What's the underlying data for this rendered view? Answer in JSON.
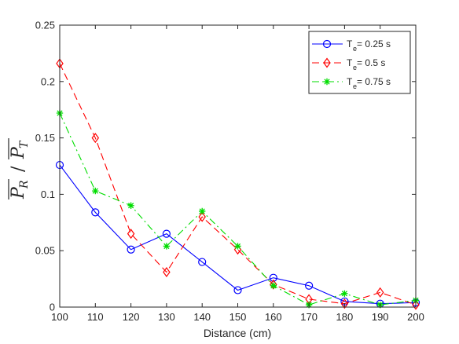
{
  "chart_data": {
    "type": "line",
    "title": "",
    "xlabel": "Distance (cm)",
    "ylabel_parts": {
      "num": "P",
      "num_sub": "R",
      "sep": "/",
      "den": "P",
      "den_sub": "T"
    },
    "xlim": [
      100,
      200
    ],
    "ylim": [
      0,
      0.25
    ],
    "x_ticks": [
      100,
      110,
      120,
      130,
      140,
      150,
      160,
      170,
      180,
      190,
      200
    ],
    "y_ticks": [
      0,
      0.05,
      0.1,
      0.15,
      0.2,
      0.25
    ],
    "y_tick_labels": [
      "0",
      "0.05",
      "0.1",
      "0.15",
      "0.2",
      "0.25"
    ],
    "grid": false,
    "legend_position": "top-right",
    "x": [
      100,
      110,
      120,
      130,
      140,
      150,
      160,
      170,
      180,
      190,
      200
    ],
    "series": [
      {
        "label_main": "T",
        "label_sub": "e",
        "label_rest": " = 0.25 s",
        "color": "#0000ff",
        "line": "solid",
        "marker": "circle",
        "values": [
          0.126,
          0.084,
          0.051,
          0.065,
          0.04,
          0.015,
          0.026,
          0.019,
          0.005,
          0.003,
          0.004
        ]
      },
      {
        "label_main": "T",
        "label_sub": "e",
        "label_rest": " = 0.5 s",
        "color": "#ff0000",
        "line": "dashed",
        "marker": "diamond",
        "values": [
          0.216,
          0.15,
          0.065,
          0.031,
          0.08,
          0.051,
          0.02,
          0.007,
          0.003,
          0.013,
          0.002
        ]
      },
      {
        "label_main": "T",
        "label_sub": "e",
        "label_rest": " = 0.75 s",
        "color": "#00dd00",
        "line": "dashdot",
        "marker": "asterisk",
        "values": [
          0.172,
          0.103,
          0.09,
          0.054,
          0.085,
          0.054,
          0.019,
          0.002,
          0.012,
          0.002,
          0.006
        ]
      }
    ]
  }
}
